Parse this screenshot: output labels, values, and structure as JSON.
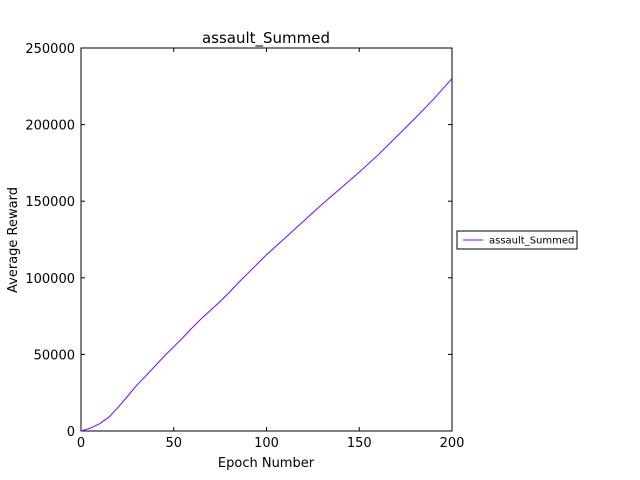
{
  "chart_data": {
    "type": "line",
    "title": "assault_Summed",
    "xlabel": "Epoch Number",
    "ylabel": "Average Reward",
    "xlim": [
      0,
      200
    ],
    "ylim": [
      0,
      250000
    ],
    "x_ticks": [
      0,
      50,
      100,
      150,
      200
    ],
    "y_ticks": [
      0,
      50000,
      100000,
      150000,
      200000,
      250000
    ],
    "x_tick_labels": [
      "0",
      "50",
      "100",
      "150",
      "200"
    ],
    "y_tick_labels": [
      "0",
      "50000",
      "100000",
      "150000",
      "200000",
      "250000"
    ],
    "grid": false,
    "legend": {
      "placement": "outside-right",
      "entries": [
        "assault_Summed"
      ]
    },
    "series": [
      {
        "name": "assault_Summed",
        "color": "#8000ff",
        "x": [
          0,
          5,
          10,
          15,
          20,
          25,
          30,
          35,
          40,
          45,
          50,
          55,
          60,
          65,
          70,
          75,
          80,
          85,
          90,
          95,
          100,
          110,
          120,
          130,
          140,
          150,
          160,
          170,
          180,
          190,
          200
        ],
        "y": [
          0,
          1800,
          4700,
          9000,
          15500,
          22500,
          29800,
          36000,
          42500,
          49000,
          55000,
          61000,
          67500,
          73500,
          79000,
          84500,
          90500,
          97000,
          103000,
          109000,
          115000,
          126000,
          137000,
          148000,
          158500,
          169000,
          180000,
          192000,
          204000,
          216500,
          230000
        ]
      }
    ]
  }
}
